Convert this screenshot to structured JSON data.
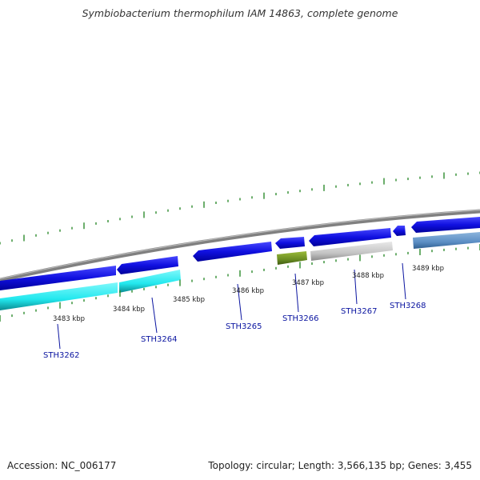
{
  "title": "Symbiobacterium thermophilum IAM 14863, complete genome",
  "footer": {
    "accession": "Accession: NC_006177",
    "summary": "Topology: circular; Length: 3,566,135 bp; Genes: 3,455"
  },
  "scale_labels": [
    "3483 kbp",
    "3484 kbp",
    "3485 kbp",
    "3486 kbp",
    "3487 kbp",
    "3488 kbp",
    "3489 kbp"
  ],
  "gene_labels": [
    "STH3262",
    "STH3264",
    "STH3265",
    "STH3266",
    "STH3267",
    "STH3268"
  ],
  "colors": {
    "backbone": "#888888",
    "gene_blue": "#1010dd",
    "gene_cyan": "#22e8ee",
    "gene_green": "#6b8e23",
    "gene_gray": "#c8c8c8",
    "gene_steel": "#5b8ec4",
    "tick_green": "#2e8b2e",
    "label_blue": "#0a14a0"
  }
}
